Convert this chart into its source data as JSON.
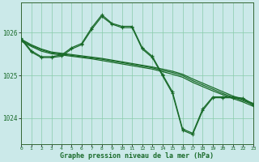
{
  "background_color": "#cbe9e9",
  "grid_color": "#88ccaa",
  "line_color": "#1a6b2a",
  "title": "Graphe pression niveau de la mer (hPa)",
  "xlim": [
    0,
    23
  ],
  "ylim": [
    1023.4,
    1026.7
  ],
  "yticks": [
    1024,
    1025,
    1026
  ],
  "xticks": [
    0,
    1,
    2,
    3,
    4,
    5,
    6,
    7,
    8,
    9,
    10,
    11,
    12,
    13,
    14,
    15,
    16,
    17,
    18,
    19,
    20,
    21,
    22,
    23
  ],
  "lines": [
    {
      "x": [
        0,
        1,
        2,
        3,
        4,
        5,
        6,
        7,
        8,
        9,
        10,
        11,
        12,
        13,
        14,
        15,
        16,
        17,
        18,
        19,
        20,
        21,
        22,
        23
      ],
      "y": [
        1025.85,
        1025.72,
        1025.62,
        1025.55,
        1025.52,
        1025.49,
        1025.46,
        1025.43,
        1025.4,
        1025.36,
        1025.32,
        1025.28,
        1025.24,
        1025.2,
        1025.15,
        1025.1,
        1025.03,
        1024.92,
        1024.82,
        1024.72,
        1024.62,
        1024.52,
        1024.44,
        1024.35
      ],
      "style": "-",
      "marker": null,
      "lw": 0.9
    },
    {
      "x": [
        0,
        1,
        2,
        3,
        4,
        5,
        6,
        7,
        8,
        9,
        10,
        11,
        12,
        13,
        14,
        15,
        16,
        17,
        18,
        19,
        20,
        21,
        22,
        23
      ],
      "y": [
        1025.83,
        1025.7,
        1025.6,
        1025.53,
        1025.5,
        1025.47,
        1025.44,
        1025.41,
        1025.38,
        1025.34,
        1025.3,
        1025.26,
        1025.22,
        1025.18,
        1025.12,
        1025.07,
        1025.0,
        1024.88,
        1024.78,
        1024.68,
        1024.58,
        1024.49,
        1024.41,
        1024.32
      ],
      "style": "-",
      "marker": null,
      "lw": 0.9
    },
    {
      "x": [
        0,
        1,
        2,
        3,
        4,
        5,
        6,
        7,
        8,
        9,
        10,
        11,
        12,
        13,
        14,
        15,
        16,
        17,
        18,
        19,
        20,
        21,
        22,
        23
      ],
      "y": [
        1025.8,
        1025.68,
        1025.57,
        1025.51,
        1025.48,
        1025.45,
        1025.42,
        1025.39,
        1025.35,
        1025.31,
        1025.27,
        1025.23,
        1025.19,
        1025.15,
        1025.09,
        1025.03,
        1024.96,
        1024.84,
        1024.74,
        1024.64,
        1024.55,
        1024.46,
        1024.38,
        1024.28
      ],
      "style": "-",
      "marker": null,
      "lw": 0.9
    },
    {
      "x": [
        0,
        1,
        2,
        3,
        4,
        5,
        6,
        7,
        8,
        9,
        10,
        11,
        12,
        13,
        14,
        15,
        16,
        17,
        18,
        19,
        20,
        21,
        22,
        23
      ],
      "y": [
        1025.85,
        1025.55,
        1025.42,
        1025.42,
        1025.45,
        1025.62,
        1025.72,
        1026.08,
        1026.38,
        1026.2,
        1026.12,
        1026.12,
        1025.62,
        1025.42,
        1025.0,
        1024.58,
        1023.72,
        1023.62,
        1024.18,
        1024.48,
        1024.48,
        1024.48,
        1024.45,
        1024.3
      ],
      "style": "-",
      "marker": "+",
      "lw": 0.9
    },
    {
      "x": [
        0,
        1,
        2,
        3,
        4,
        5,
        6,
        7,
        8,
        9,
        10,
        11,
        12,
        13,
        14,
        15,
        16,
        17,
        18,
        19,
        20,
        21,
        22,
        23
      ],
      "y": [
        1025.87,
        1025.58,
        1025.44,
        1025.44,
        1025.48,
        1025.65,
        1025.75,
        1026.12,
        1026.42,
        1026.22,
        1026.15,
        1026.15,
        1025.65,
        1025.45,
        1025.03,
        1024.62,
        1023.75,
        1023.65,
        1024.22,
        1024.5,
        1024.5,
        1024.5,
        1024.47,
        1024.33
      ],
      "style": "-",
      "marker": "+",
      "lw": 0.9
    }
  ]
}
